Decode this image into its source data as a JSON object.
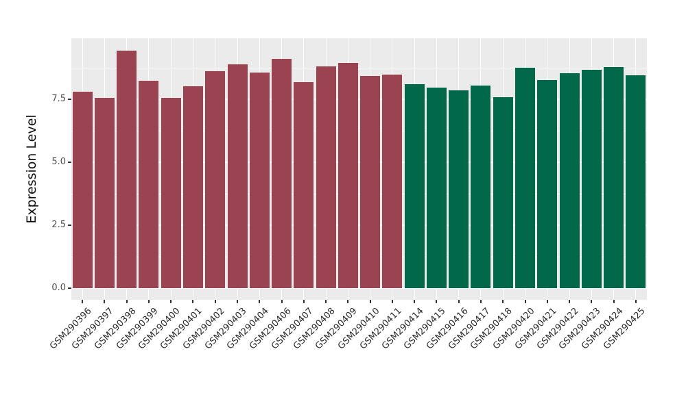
{
  "chart_data": {
    "type": "bar",
    "title": "",
    "xlabel": "",
    "ylabel": "Expression Level",
    "categories": [
      "GSM290396",
      "GSM290397",
      "GSM290398",
      "GSM290399",
      "GSM290400",
      "GSM290401",
      "GSM290402",
      "GSM290403",
      "GSM290404",
      "GSM290406",
      "GSM290407",
      "GSM290408",
      "GSM290409",
      "GSM290410",
      "GSM290411",
      "GSM290414",
      "GSM290415",
      "GSM290416",
      "GSM290417",
      "GSM290418",
      "GSM290420",
      "GSM290421",
      "GSM290422",
      "GSM290423",
      "GSM290424",
      "GSM290425"
    ],
    "values": [
      7.8,
      7.56,
      9.44,
      8.23,
      7.55,
      8.02,
      8.62,
      8.89,
      8.58,
      9.11,
      8.19,
      8.82,
      8.96,
      8.43,
      8.48,
      8.1,
      7.98,
      7.85,
      8.05,
      7.58,
      8.75,
      8.28,
      8.55,
      8.68,
      8.78,
      8.46
    ],
    "colors": [
      "#9A4351",
      "#9A4351",
      "#9A4351",
      "#9A4351",
      "#9A4351",
      "#9A4351",
      "#9A4351",
      "#9A4351",
      "#9A4351",
      "#9A4351",
      "#9A4351",
      "#9A4351",
      "#9A4351",
      "#9A4351",
      "#9A4351",
      "#006849",
      "#006849",
      "#006849",
      "#006849",
      "#006849",
      "#006849",
      "#006849",
      "#006849",
      "#006849",
      "#006849",
      "#006849"
    ],
    "color_groups": {
      "maroon": "#9A4351",
      "green": "#006849"
    },
    "ylim": [
      0,
      9.93
    ],
    "yticks": [
      0.0,
      2.5,
      5.0,
      7.5
    ],
    "ytick_labels": [
      "0.0",
      "2.5",
      "5.0",
      "7.5"
    ],
    "minor_yticks": [
      1.25,
      3.75,
      6.25,
      8.75
    ],
    "grid": true,
    "legend": "none",
    "panel_background": "#EBEBEB",
    "grid_color": "#FFFFFF"
  }
}
